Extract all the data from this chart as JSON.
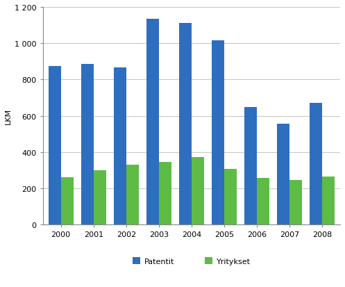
{
  "years": [
    2000,
    2001,
    2002,
    2003,
    2004,
    2005,
    2006,
    2007,
    2008
  ],
  "patentit": [
    875,
    885,
    868,
    1133,
    1113,
    1017,
    648,
    558,
    670
  ],
  "yritykset": [
    262,
    300,
    330,
    348,
    372,
    308,
    258,
    245,
    265
  ],
  "bar_color_patentit": "#2E6EBF",
  "bar_color_yritykset": "#5DBB46",
  "ylabel": "LKM",
  "ylim": [
    0,
    1200
  ],
  "yticks": [
    0,
    200,
    400,
    600,
    800,
    1000,
    1200
  ],
  "ytick_labels": [
    "0",
    "200",
    "400",
    "600",
    "800",
    "1 000",
    "1 200"
  ],
  "legend_patentit": "Patentit",
  "legend_yritykset": "Yritykset",
  "bar_width": 0.38,
  "background_color": "#ffffff",
  "grid_color": "#bbbbbb",
  "spine_color": "#888888",
  "tick_fontsize": 8,
  "ylabel_fontsize": 8,
  "legend_fontsize": 8
}
